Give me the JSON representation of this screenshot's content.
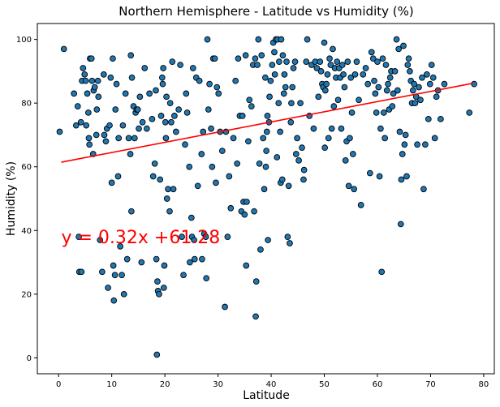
{
  "chart_data": {
    "type": "scatter",
    "title": "Northern Hemisphere - Latitude vs Humidity (%)",
    "xlabel": "Latitude",
    "ylabel": "Humidity (%)",
    "xlim": [
      -4,
      82
    ],
    "ylim": [
      -5,
      105
    ],
    "xticks": [
      0,
      10,
      20,
      30,
      40,
      50,
      60,
      70,
      80
    ],
    "yticks": [
      0,
      20,
      40,
      60,
      80,
      100
    ],
    "grid": false,
    "marker_color": "#1f77b4",
    "regression": {
      "slope": 0.32,
      "intercept": 61.28,
      "x_range": [
        0.5,
        78
      ],
      "color": "#ff0000",
      "label": "y = 0.32x +61.28",
      "label_anchor": [
        0.5,
        36
      ]
    },
    "points": [
      [
        0.2,
        71
      ],
      [
        1,
        97
      ],
      [
        2.9,
        83
      ],
      [
        3.3,
        73
      ],
      [
        3.6,
        79
      ],
      [
        3.8,
        38
      ],
      [
        3.9,
        27
      ],
      [
        4.2,
        74
      ],
      [
        4.3,
        27
      ],
      [
        4.4,
        87
      ],
      [
        4.6,
        91
      ],
      [
        4.9,
        89
      ],
      [
        5.1,
        87
      ],
      [
        5.2,
        73
      ],
      [
        5.4,
        83
      ],
      [
        5.6,
        77
      ],
      [
        5.7,
        69
      ],
      [
        5.8,
        67
      ],
      [
        5.9,
        94
      ],
      [
        6.2,
        94
      ],
      [
        6.3,
        87
      ],
      [
        6.5,
        64
      ],
      [
        6.6,
        84
      ],
      [
        6.8,
        85
      ],
      [
        7.1,
        70
      ],
      [
        7.2,
        78
      ],
      [
        7.4,
        87
      ],
      [
        7.5,
        82
      ],
      [
        7.8,
        37
      ],
      [
        8.2,
        27
      ],
      [
        8.5,
        89
      ],
      [
        8.6,
        70
      ],
      [
        8.9,
        68
      ],
      [
        9.1,
        72
      ],
      [
        9.3,
        22
      ],
      [
        9.6,
        73
      ],
      [
        9.8,
        88
      ],
      [
        10,
        55
      ],
      [
        10.2,
        94
      ],
      [
        10.3,
        29
      ],
      [
        10.4,
        18
      ],
      [
        10.6,
        26
      ],
      [
        10.7,
        78
      ],
      [
        10.9,
        86
      ],
      [
        11.2,
        57
      ],
      [
        11.3,
        69
      ],
      [
        11.6,
        35
      ],
      [
        11.9,
        26
      ],
      [
        12.1,
        73
      ],
      [
        12.3,
        20
      ],
      [
        12.6,
        83
      ],
      [
        12.9,
        31
      ],
      [
        13.2,
        69
      ],
      [
        13.5,
        64
      ],
      [
        13.6,
        95
      ],
      [
        13.7,
        46
      ],
      [
        13.8,
        88
      ],
      [
        14.1,
        79
      ],
      [
        14.3,
        69
      ],
      [
        14.5,
        77
      ],
      [
        14.7,
        78
      ],
      [
        14.9,
        78
      ],
      [
        15.1,
        72
      ],
      [
        15.3,
        82
      ],
      [
        15.6,
        30
      ],
      [
        15.8,
        74
      ],
      [
        16.2,
        91
      ],
      [
        16.6,
        72
      ],
      [
        17.1,
        83
      ],
      [
        17.6,
        75
      ],
      [
        17.8,
        57
      ],
      [
        18.1,
        61
      ],
      [
        18.3,
        84
      ],
      [
        18.4,
        31
      ],
      [
        18.7,
        21
      ],
      [
        18.9,
        20
      ],
      [
        18.6,
        24
      ],
      [
        18.5,
        1
      ],
      [
        19.1,
        56
      ],
      [
        19.3,
        76
      ],
      [
        19.5,
        88
      ],
      [
        19.6,
        86
      ],
      [
        19.7,
        91
      ],
      [
        19.8,
        22
      ],
      [
        19.9,
        29
      ],
      [
        20.1,
        74
      ],
      [
        20.2,
        69
      ],
      [
        20.3,
        82
      ],
      [
        20.4,
        50
      ],
      [
        20.6,
        53
      ],
      [
        20.9,
        46
      ],
      [
        21,
        80
      ],
      [
        21.2,
        74
      ],
      [
        21.4,
        93
      ],
      [
        21.6,
        53
      ],
      [
        21.8,
        76
      ],
      [
        22.1,
        71
      ],
      [
        22.6,
        78
      ],
      [
        22.9,
        92
      ],
      [
        23.2,
        38
      ],
      [
        23.5,
        26
      ],
      [
        23.8,
        67
      ],
      [
        24,
        83
      ],
      [
        24.2,
        77
      ],
      [
        24.6,
        60
      ],
      [
        24.7,
        30
      ],
      [
        25,
        44
      ],
      [
        25.1,
        38
      ],
      [
        25.3,
        91
      ],
      [
        25.5,
        37
      ],
      [
        25.6,
        31
      ],
      [
        25.9,
        88
      ],
      [
        26.2,
        54
      ],
      [
        26.5,
        87
      ],
      [
        26.9,
        64
      ],
      [
        27,
        31
      ],
      [
        27.2,
        71
      ],
      [
        27.4,
        39
      ],
      [
        27.7,
        38
      ],
      [
        27.8,
        25
      ],
      [
        28,
        100
      ],
      [
        28.2,
        78
      ],
      [
        28.4,
        86
      ],
      [
        28.7,
        72
      ],
      [
        28.9,
        60
      ],
      [
        29.1,
        94
      ],
      [
        29.4,
        94
      ],
      [
        29.6,
        55
      ],
      [
        29.8,
        85
      ],
      [
        30.1,
        83
      ],
      [
        30.4,
        71
      ],
      [
        30.8,
        65
      ],
      [
        31.3,
        16
      ],
      [
        31.5,
        71
      ],
      [
        31.8,
        38
      ],
      [
        32.1,
        57
      ],
      [
        32.4,
        47
      ],
      [
        32.9,
        69
      ],
      [
        33.3,
        87
      ],
      [
        33.6,
        61
      ],
      [
        33.8,
        94
      ],
      [
        34.1,
        76
      ],
      [
        34.4,
        46
      ],
      [
        34.6,
        76
      ],
      [
        34.8,
        49
      ],
      [
        35,
        45
      ],
      [
        35.2,
        95
      ],
      [
        35.3,
        29
      ],
      [
        35.4,
        49
      ],
      [
        35.7,
        68
      ],
      [
        35.9,
        81
      ],
      [
        36.3,
        79
      ],
      [
        36.6,
        92
      ],
      [
        36.8,
        46
      ],
      [
        37,
        94
      ],
      [
        37.1,
        13
      ],
      [
        37.2,
        24
      ],
      [
        37.4,
        92
      ],
      [
        37.6,
        100
      ],
      [
        37.8,
        61
      ],
      [
        38,
        34
      ],
      [
        38.2,
        95
      ],
      [
        38.5,
        69
      ],
      [
        38.7,
        53
      ],
      [
        38.9,
        88
      ],
      [
        39,
        60
      ],
      [
        39.1,
        65
      ],
      [
        39.2,
        71
      ],
      [
        39.3,
        76
      ],
      [
        39.4,
        37
      ],
      [
        39.6,
        74
      ],
      [
        39.7,
        82
      ],
      [
        39.9,
        87
      ],
      [
        40.2,
        92
      ],
      [
        40.4,
        99
      ],
      [
        40.6,
        96
      ],
      [
        40.7,
        89
      ],
      [
        40.9,
        100
      ],
      [
        41.1,
        63
      ],
      [
        41.2,
        100
      ],
      [
        41.4,
        80
      ],
      [
        41.5,
        93
      ],
      [
        41.7,
        71
      ],
      [
        41.8,
        55
      ],
      [
        41.9,
        100
      ],
      [
        42.1,
        56
      ],
      [
        42.2,
        95
      ],
      [
        42.4,
        83
      ],
      [
        42.5,
        89
      ],
      [
        42.7,
        85
      ],
      [
        42.9,
        93
      ],
      [
        43.1,
        38
      ],
      [
        43.3,
        54
      ],
      [
        43.5,
        36
      ],
      [
        43.7,
        74
      ],
      [
        43.8,
        80
      ],
      [
        44,
        85
      ],
      [
        44.2,
        91
      ],
      [
        44.5,
        93
      ],
      [
        44.7,
        64
      ],
      [
        44.9,
        69
      ],
      [
        45.2,
        62
      ],
      [
        45.5,
        80
      ],
      [
        45.8,
        66
      ],
      [
        46.1,
        56
      ],
      [
        46.2,
        59
      ],
      [
        46.6,
        93
      ],
      [
        46.8,
        100
      ],
      [
        47.2,
        76
      ],
      [
        47.6,
        92
      ],
      [
        48,
        72
      ],
      [
        48.3,
        93
      ],
      [
        48.6,
        91
      ],
      [
        48.9,
        82
      ],
      [
        49.2,
        93
      ],
      [
        49.4,
        90
      ],
      [
        49.6,
        86
      ],
      [
        49.8,
        85
      ],
      [
        50,
        99
      ],
      [
        50.1,
        66
      ],
      [
        50.2,
        84
      ],
      [
        50.4,
        86
      ],
      [
        50.6,
        89
      ],
      [
        50.8,
        69
      ],
      [
        51,
        94
      ],
      [
        51.2,
        92
      ],
      [
        51.4,
        72
      ],
      [
        51.6,
        97
      ],
      [
        51.8,
        79
      ],
      [
        52,
        91
      ],
      [
        52.2,
        88
      ],
      [
        52.4,
        93
      ],
      [
        52.6,
        81
      ],
      [
        52.8,
        91
      ],
      [
        53,
        88
      ],
      [
        53.2,
        72
      ],
      [
        53.4,
        92
      ],
      [
        53.6,
        89
      ],
      [
        53.8,
        85
      ],
      [
        54,
        62
      ],
      [
        54.2,
        68
      ],
      [
        54.4,
        93
      ],
      [
        54.6,
        54
      ],
      [
        54.8,
        69
      ],
      [
        55,
        88
      ],
      [
        55.2,
        77
      ],
      [
        55.4,
        64
      ],
      [
        55.6,
        53
      ],
      [
        55.8,
        89
      ],
      [
        56.1,
        93
      ],
      [
        56.5,
        81
      ],
      [
        56.9,
        48
      ],
      [
        57.3,
        89
      ],
      [
        57.8,
        91
      ],
      [
        58.2,
        86
      ],
      [
        58.6,
        58
      ],
      [
        58.9,
        96
      ],
      [
        59.2,
        94
      ],
      [
        59.4,
        87
      ],
      [
        59.6,
        83
      ],
      [
        59.8,
        77
      ],
      [
        60,
        93
      ],
      [
        60.2,
        85
      ],
      [
        60.4,
        57
      ],
      [
        60.6,
        72
      ],
      [
        60.8,
        27
      ],
      [
        61,
        94
      ],
      [
        61.2,
        77
      ],
      [
        61.4,
        69
      ],
      [
        61.6,
        92
      ],
      [
        61.8,
        84
      ],
      [
        62,
        86
      ],
      [
        62.2,
        78
      ],
      [
        62.4,
        88
      ],
      [
        62.6,
        90
      ],
      [
        62.8,
        79
      ],
      [
        63,
        83
      ],
      [
        63.3,
        90
      ],
      [
        63.6,
        100
      ],
      [
        63.8,
        84
      ],
      [
        64,
        97
      ],
      [
        64.2,
        71
      ],
      [
        64.4,
        42
      ],
      [
        64.5,
        56
      ],
      [
        64.7,
        64
      ],
      [
        64.9,
        98
      ],
      [
        65.1,
        67
      ],
      [
        65.3,
        70
      ],
      [
        65.5,
        57
      ],
      [
        65.7,
        92
      ],
      [
        65.9,
        94
      ],
      [
        66.1,
        90
      ],
      [
        66.3,
        87
      ],
      [
        66.5,
        80
      ],
      [
        66.7,
        84
      ],
      [
        66.9,
        86
      ],
      [
        67.1,
        80
      ],
      [
        67.3,
        82
      ],
      [
        67.5,
        67
      ],
      [
        67.8,
        85
      ],
      [
        68.1,
        81
      ],
      [
        68.4,
        88
      ],
      [
        68.7,
        53
      ],
      [
        69,
        67
      ],
      [
        69.3,
        89
      ],
      [
        69.6,
        75
      ],
      [
        69.9,
        86
      ],
      [
        70.2,
        92
      ],
      [
        70.5,
        88
      ],
      [
        70.8,
        69
      ],
      [
        71.1,
        82
      ],
      [
        71.4,
        84
      ],
      [
        71.9,
        75
      ],
      [
        72.6,
        86
      ],
      [
        77.3,
        77
      ],
      [
        78.2,
        86
      ]
    ]
  }
}
